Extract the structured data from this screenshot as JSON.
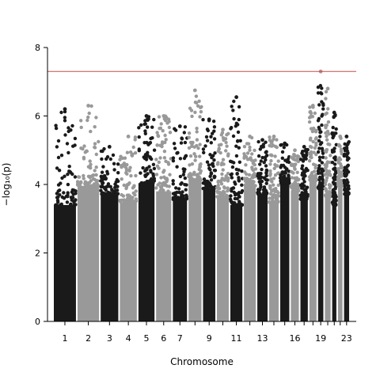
{
  "chart_data": {
    "type": "scatter",
    "title": "",
    "xlabel": "Chromosome",
    "ylabel": "−log₁₀(p)",
    "ylim": [
      0,
      8
    ],
    "yticks": [
      0,
      2,
      4,
      6,
      8
    ],
    "grid": false,
    "significance_threshold": 7.3,
    "threshold_color": "#c0504d",
    "series_colors": [
      "#1a1a1a",
      "#999999"
    ],
    "chromosome_order": [
      "1",
      "2",
      "3",
      "4",
      "5",
      "6",
      "7",
      "8",
      "9",
      "10",
      "11",
      "12",
      "13",
      "14",
      "15",
      "16",
      "17",
      "18",
      "19",
      "20",
      "21",
      "22",
      "23"
    ],
    "chromosome_tick_labels": [
      "1",
      "2",
      "3",
      "4",
      "5",
      "6",
      "7",
      "9",
      "11",
      "13",
      "16",
      "19",
      "23"
    ],
    "chromosomes": [
      {
        "chr": "1",
        "length_mb": 249,
        "peak": 6.2
      },
      {
        "chr": "2",
        "length_mb": 243,
        "peak": 6.3
      },
      {
        "chr": "3",
        "length_mb": 198,
        "peak": 5.1
      },
      {
        "chr": "4",
        "length_mb": 191,
        "peak": 5.4
      },
      {
        "chr": "5",
        "length_mb": 181,
        "peak": 6.0
      },
      {
        "chr": "6",
        "length_mb": 171,
        "peak": 6.0
      },
      {
        "chr": "7",
        "length_mb": 159,
        "peak": 5.7
      },
      {
        "chr": "8",
        "length_mb": 145,
        "peak": 6.75
      },
      {
        "chr": "9",
        "length_mb": 138,
        "peak": 5.9
      },
      {
        "chr": "10",
        "length_mb": 134,
        "peak": 5.6
      },
      {
        "chr": "11",
        "length_mb": 135,
        "peak": 6.55
      },
      {
        "chr": "12",
        "length_mb": 133,
        "peak": 5.4
      },
      {
        "chr": "13",
        "length_mb": 115,
        "peak": 5.3
      },
      {
        "chr": "14",
        "length_mb": 107,
        "peak": 5.4
      },
      {
        "chr": "15",
        "length_mb": 102,
        "peak": 5.2
      },
      {
        "chr": "16",
        "length_mb": 90,
        "peak": 5.0
      },
      {
        "chr": "17",
        "length_mb": 83,
        "peak": 5.1
      },
      {
        "chr": "18",
        "length_mb": 80,
        "peak": 6.3
      },
      {
        "chr": "19",
        "length_mb": 59,
        "peak": 7.3
      },
      {
        "chr": "20",
        "length_mb": 64,
        "peak": 6.8
      },
      {
        "chr": "21",
        "length_mb": 47,
        "peak": 6.1
      },
      {
        "chr": "22",
        "length_mb": 51,
        "peak": 5.4
      },
      {
        "chr": "23",
        "length_mb": 57,
        "peak": 5.4
      }
    ]
  }
}
